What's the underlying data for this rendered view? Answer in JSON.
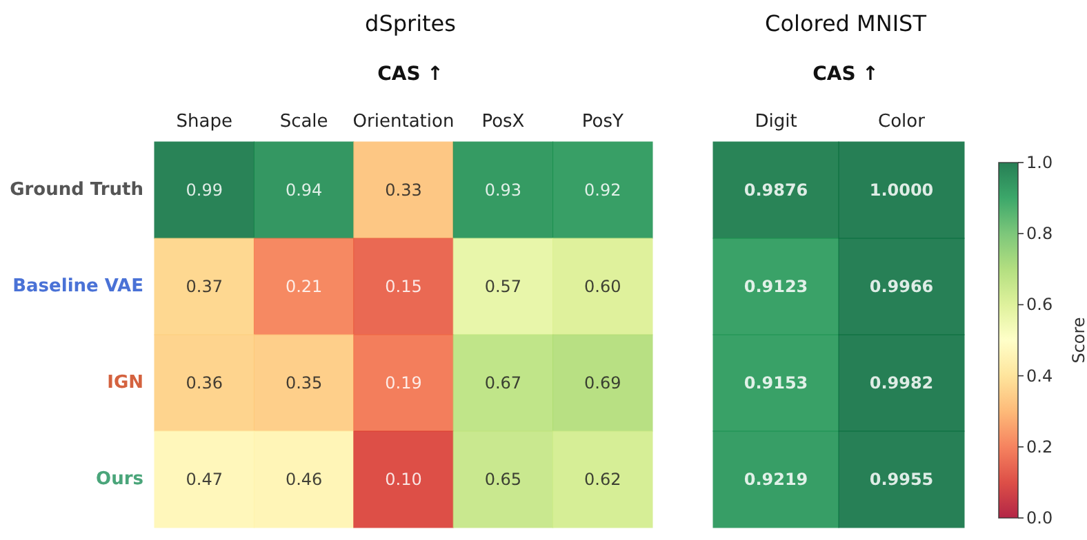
{
  "chart_data": [
    {
      "type": "heatmap",
      "title": "dSprites",
      "subtitle": "CAS ↑",
      "categories": [
        "Shape",
        "Scale",
        "Orientation",
        "PosX",
        "PosY"
      ],
      "y_categories": [
        "Ground Truth",
        "Baseline VAE",
        "IGN",
        "Ours"
      ],
      "cells": [
        [
          0.99,
          0.94,
          0.33,
          0.93,
          0.92
        ],
        [
          0.37,
          0.21,
          0.15,
          0.57,
          0.6
        ],
        [
          0.36,
          0.35,
          0.19,
          0.67,
          0.69
        ],
        [
          0.47,
          0.46,
          0.1,
          0.65,
          0.62
        ]
      ],
      "cell_labels": [
        [
          "0.99",
          "0.94",
          "0.33",
          "0.93",
          "0.92"
        ],
        [
          "0.37",
          "0.21",
          "0.15",
          "0.57",
          "0.60"
        ],
        [
          "0.36",
          "0.35",
          "0.19",
          "0.67",
          "0.69"
        ],
        [
          "0.47",
          "0.46",
          "0.10",
          "0.65",
          "0.62"
        ]
      ]
    },
    {
      "type": "heatmap",
      "title": "Colored MNIST",
      "subtitle": "CAS ↑",
      "categories": [
        "Digit",
        "Color"
      ],
      "y_categories": [
        null,
        null,
        null,
        null
      ],
      "cells": [
        [
          0.9876,
          1.0
        ],
        [
          0.9123,
          0.9966
        ],
        [
          0.9153,
          0.9982
        ],
        [
          0.9219,
          0.9955
        ]
      ],
      "cell_labels": [
        [
          "0.9876",
          "1.0000"
        ],
        [
          "0.9123",
          "0.9966"
        ],
        [
          "0.9153",
          "0.9982"
        ],
        [
          "0.9219",
          "0.9955"
        ]
      ],
      "clim": [
        0,
        1
      ],
      "cticks": [
        {
          "value": 0,
          "label": "0.0"
        },
        0.2,
        0.4,
        0.6,
        0.8,
        {
          "value": 1,
          "label": "1.0"
        }
      ],
      "clabel": "Score",
      "tick_labels": "x"
    }
  ]
}
